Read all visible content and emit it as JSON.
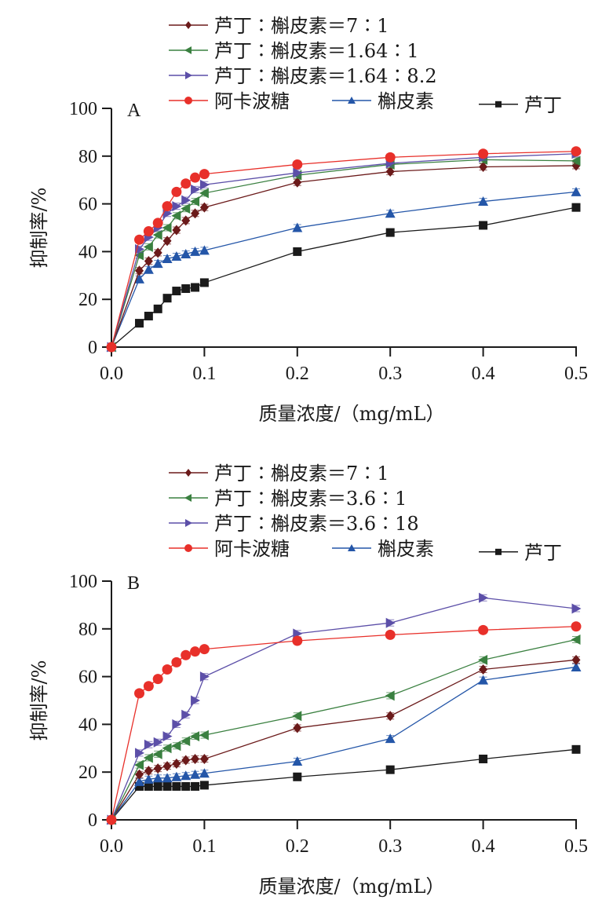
{
  "chart_data": [
    {
      "type": "line",
      "panel_label": "A",
      "xlabel": "质量浓度/（mg/mL）",
      "ylabel": "抑制率/%",
      "xlim": [
        0,
        0.5
      ],
      "ylim": [
        0,
        100
      ],
      "xticks": [
        "0.0",
        "0.1",
        "0.2",
        "0.3",
        "0.4",
        "0.5"
      ],
      "yticks": [
        "0",
        "20",
        "40",
        "60",
        "80",
        "100"
      ],
      "grid": false,
      "legend_position": "top",
      "x": [
        0,
        0.03,
        0.04,
        0.05,
        0.06,
        0.07,
        0.08,
        0.09,
        0.1,
        0.2,
        0.3,
        0.4,
        0.5
      ],
      "series": [
        {
          "name": "芦丁:槲皮素=7:1",
          "color": "#6b1a1a",
          "marker": "diamond",
          "values": [
            0,
            32,
            36,
            39.5,
            44.5,
            49,
            53,
            56,
            58.5,
            69,
            73.5,
            75.5,
            76
          ]
        },
        {
          "name": "芦丁:槲皮素=1.64:1",
          "color": "#3a8040",
          "marker": "triangle-left",
          "values": [
            0,
            38.5,
            42,
            47,
            50,
            55,
            58,
            61,
            64.5,
            72,
            76.5,
            78.5,
            78
          ]
        },
        {
          "name": "芦丁:槲皮素=1.64:8.2",
          "color": "#5c4fa8",
          "marker": "triangle-right",
          "values": [
            0,
            41,
            46,
            50,
            56,
            59,
            61.5,
            66,
            68,
            73,
            77,
            79.5,
            81
          ]
        },
        {
          "name": "阿卡波糖",
          "color": "#e8302a",
          "marker": "circle",
          "values": [
            0,
            45,
            48.5,
            52,
            59,
            65,
            68.5,
            71,
            72.5,
            76.5,
            79.5,
            81,
            82
          ]
        },
        {
          "name": "槲皮素",
          "color": "#2456a8",
          "marker": "triangle-up",
          "values": [
            0,
            28.5,
            32.5,
            35,
            37,
            38,
            39,
            40,
            40.5,
            50,
            56,
            61,
            65
          ]
        },
        {
          "name": "芦丁",
          "color": "#1a1a1a",
          "marker": "square",
          "values": [
            0,
            10,
            13,
            16,
            20.5,
            23.5,
            24.5,
            25,
            27,
            40,
            48,
            51,
            58.5
          ]
        }
      ]
    },
    {
      "type": "line",
      "panel_label": "B",
      "xlabel": "质量浓度/（mg/mL）",
      "ylabel": "抑制率/%",
      "xlim": [
        0,
        0.5
      ],
      "ylim": [
        0,
        100
      ],
      "xticks": [
        "0.0",
        "0.1",
        "0.2",
        "0.3",
        "0.4",
        "0.5"
      ],
      "yticks": [
        "0",
        "20",
        "40",
        "60",
        "80",
        "100"
      ],
      "grid": false,
      "legend_position": "top",
      "x": [
        0,
        0.03,
        0.04,
        0.05,
        0.06,
        0.07,
        0.08,
        0.09,
        0.1,
        0.2,
        0.3,
        0.4,
        0.5
      ],
      "series": [
        {
          "name": "芦丁:槲皮素=7:1",
          "color": "#6b1a1a",
          "marker": "diamond",
          "values": [
            0,
            19,
            20.5,
            21.5,
            22.5,
            23.5,
            25,
            25.5,
            25.5,
            38.5,
            43.5,
            63,
            67
          ]
        },
        {
          "name": "芦丁:槲皮素=3.6:1",
          "color": "#3a8040",
          "marker": "triangle-left",
          "values": [
            0,
            23,
            26,
            27.5,
            30,
            31,
            33,
            35,
            35.5,
            43.5,
            52,
            67,
            75.5
          ]
        },
        {
          "name": "芦丁:槲皮素=3.6:18",
          "color": "#5c4fa8",
          "marker": "triangle-right",
          "values": [
            0,
            28,
            31.5,
            32.5,
            35,
            40,
            44,
            50,
            60,
            78,
            82.5,
            93,
            88.5
          ]
        },
        {
          "name": "阿卡波糖",
          "color": "#e8302a",
          "marker": "circle",
          "values": [
            0,
            53,
            56,
            59,
            63,
            66,
            69,
            70.5,
            71.5,
            75,
            77.5,
            79.5,
            81
          ]
        },
        {
          "name": "槲皮素",
          "color": "#2456a8",
          "marker": "triangle-up",
          "values": [
            0,
            16,
            17,
            17.5,
            17.5,
            18,
            18.5,
            19,
            19.5,
            24.5,
            34,
            58.5,
            64
          ]
        },
        {
          "name": "芦丁",
          "color": "#1a1a1a",
          "marker": "square",
          "values": [
            0,
            14,
            14,
            14,
            14,
            14,
            14,
            14,
            14.5,
            18,
            21,
            25.5,
            29.5
          ]
        }
      ]
    }
  ]
}
